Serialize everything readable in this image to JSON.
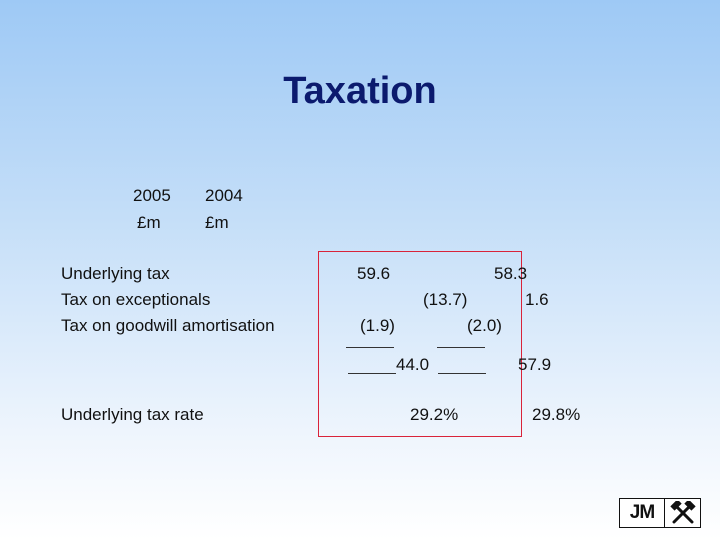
{
  "slide": {
    "title": "Taxation"
  },
  "columns": {
    "year_2005": "2005",
    "unit_2005": "£m",
    "year_2004": "2004",
    "unit_2004": "£m"
  },
  "rows": [
    {
      "label": "Underlying tax",
      "v2005": "59.6",
      "v2004": "58.3"
    },
    {
      "label": "Tax on exceptionals",
      "v2005": "(13.7)",
      "v2004": "1.6"
    },
    {
      "label": "Tax on goodwill amortisation",
      "v2005": "(1.9)",
      "v2004": "(2.0)"
    }
  ],
  "subtotal": {
    "v2005": "44.0",
    "v2004": "57.9"
  },
  "rate": {
    "label": "Underlying tax rate",
    "v2005": "29.2%",
    "v2004": "29.8%"
  },
  "logo": {
    "text": "JM",
    "icon": "crossed-hammers-icon"
  },
  "colors": {
    "title": "#0b1a6e",
    "highlight_box": "#d9233a"
  }
}
